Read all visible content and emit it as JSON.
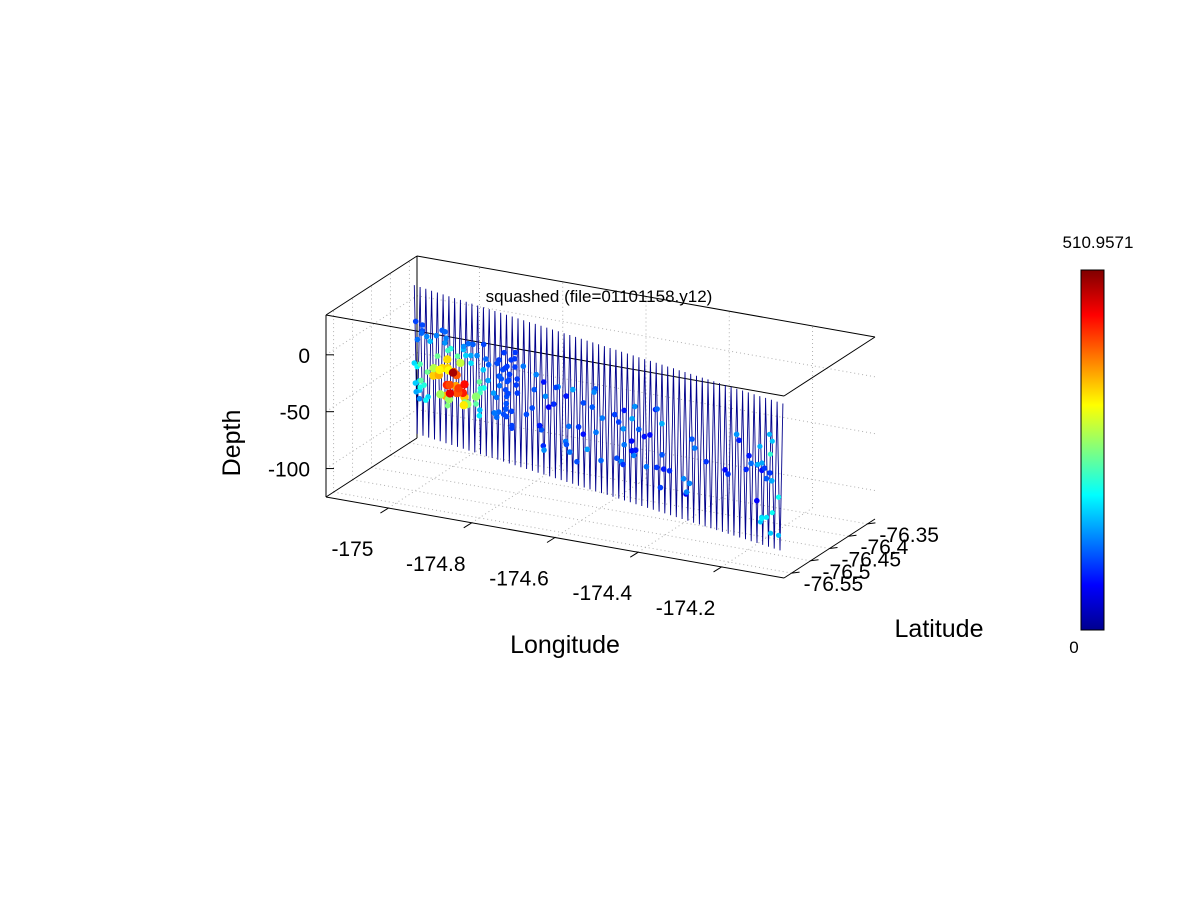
{
  "chart_data": {
    "type": "scatter3d",
    "title": "squashed  (file=01101158.y12)",
    "xlabel": "Longitude",
    "ylabel": "Latitude",
    "zlabel": "Depth",
    "xlim": [
      -175.15,
      -174.05
    ],
    "ylim": [
      -76.57,
      -76.33
    ],
    "zlim": [
      -125,
      35
    ],
    "grid": true,
    "x_ticks": [
      {
        "value": -175,
        "label": "-175"
      },
      {
        "value": -174.8,
        "label": "-174.8"
      },
      {
        "value": -174.6,
        "label": "-174.6"
      },
      {
        "value": -174.4,
        "label": "-174.4"
      },
      {
        "value": -174.2,
        "label": "-174.2"
      }
    ],
    "y_ticks": [
      {
        "value": -76.35,
        "label": "-76.35"
      },
      {
        "value": -76.4,
        "label": "-76.4"
      },
      {
        "value": -76.45,
        "label": "-76.45"
      },
      {
        "value": -76.5,
        "label": "-76.5"
      },
      {
        "value": -76.55,
        "label": "-76.55"
      }
    ],
    "z_ticks": [
      {
        "value": 0,
        "label": "0"
      },
      {
        "value": -50,
        "label": "-50"
      },
      {
        "value": -100,
        "label": "-100"
      }
    ],
    "colorbar": {
      "min": 0,
      "max": 510.9571,
      "min_label": "0",
      "max_label": "510.9571",
      "colormap": "jet"
    },
    "track": {
      "start": {
        "lon": -175.12,
        "lat": -76.37
      },
      "end": {
        "lon": -174.08,
        "lat": -76.54
      },
      "profiles": 64,
      "depth_range": [
        -110,
        20
      ],
      "line_color": "#00008b"
    },
    "highlight_region": {
      "lon_range": [
        -175.1,
        -174.8
      ],
      "depth_range": [
        -80,
        -10
      ],
      "value_peak": 510.9571
    }
  }
}
